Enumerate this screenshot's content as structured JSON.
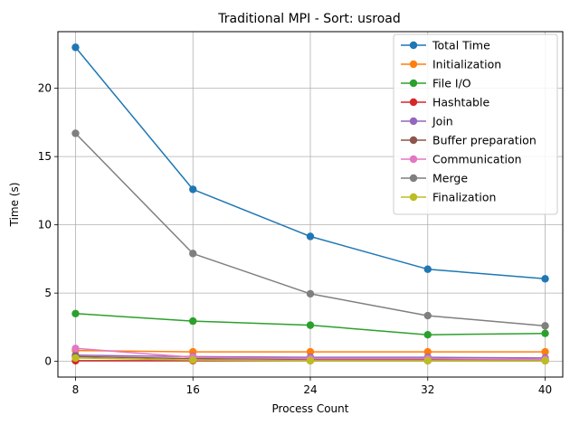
{
  "chart_data": {
    "type": "line",
    "title": "Traditional MPI - Sort: usroad",
    "xlabel": "Process Count",
    "ylabel": "Time (s)",
    "x": [
      8,
      16,
      24,
      32,
      40
    ],
    "xticks": [
      8,
      16,
      24,
      32,
      40
    ],
    "yticks": [
      0,
      5,
      10,
      15,
      20
    ],
    "xlim": [
      6.8,
      41.2
    ],
    "ylim": [
      -1.15,
      24.15
    ],
    "grid": true,
    "legend_position": "top-right",
    "series": [
      {
        "name": "Total Time",
        "color": "#1f77b4",
        "values": [
          23.0,
          12.6,
          9.15,
          6.75,
          6.05
        ]
      },
      {
        "name": "Initialization",
        "color": "#ff7f0e",
        "values": [
          0.8,
          0.7,
          0.7,
          0.7,
          0.7
        ]
      },
      {
        "name": "File I/O",
        "color": "#2ca02c",
        "values": [
          3.5,
          2.95,
          2.65,
          1.95,
          2.05
        ]
      },
      {
        "name": "Hashtable",
        "color": "#d62728",
        "values": [
          0.05,
          0.05,
          0.05,
          0.05,
          0.05
        ]
      },
      {
        "name": "Join",
        "color": "#9467bd",
        "values": [
          0.45,
          0.35,
          0.3,
          0.3,
          0.25
        ]
      },
      {
        "name": "Buffer preparation",
        "color": "#8c564b",
        "values": [
          0.35,
          0.2,
          0.15,
          0.15,
          0.1
        ]
      },
      {
        "name": "Communication",
        "color": "#e377c2",
        "values": [
          0.95,
          0.3,
          0.2,
          0.2,
          0.15
        ]
      },
      {
        "name": "Merge",
        "color": "#7f7f7f",
        "values": [
          16.7,
          7.9,
          4.95,
          3.35,
          2.6
        ]
      },
      {
        "name": "Finalization",
        "color": "#bcbd22",
        "values": [
          0.25,
          0.1,
          0.05,
          0.05,
          0.05
        ]
      }
    ]
  }
}
